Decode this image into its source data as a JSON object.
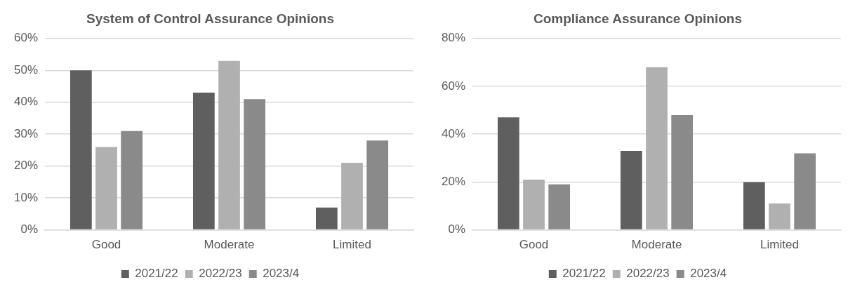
{
  "chart_data": [
    {
      "type": "bar",
      "title": "System of Control Assurance Opinions",
      "categories": [
        "Good",
        "Moderate",
        "Limited"
      ],
      "series": [
        {
          "name": "2021/22",
          "color": "#5f5f5f",
          "values": [
            50,
            43,
            7
          ]
        },
        {
          "name": "2022/23",
          "color": "#b0b0b0",
          "values": [
            26,
            53,
            21
          ]
        },
        {
          "name": "2023/4",
          "color": "#8a8a8a",
          "values": [
            31,
            41,
            28
          ]
        }
      ],
      "ylim": [
        0,
        60
      ],
      "yticks": [
        {
          "value": 0,
          "label": "0%"
        },
        {
          "value": 10,
          "label": "10%"
        },
        {
          "value": 20,
          "label": "20%"
        },
        {
          "value": 30,
          "label": "30%"
        },
        {
          "value": 40,
          "label": "40%"
        },
        {
          "value": 50,
          "label": "50%"
        },
        {
          "value": 60,
          "label": "60%"
        }
      ],
      "grid": "y",
      "legend": "bottom"
    },
    {
      "type": "bar",
      "title": "Compliance Assurance Opinions",
      "categories": [
        "Good",
        "Moderate",
        "Limited"
      ],
      "series": [
        {
          "name": "2021/22",
          "color": "#5f5f5f",
          "values": [
            47,
            33,
            20
          ]
        },
        {
          "name": "2022/23",
          "color": "#b0b0b0",
          "values": [
            21,
            68,
            11
          ]
        },
        {
          "name": "2023/4",
          "color": "#8a8a8a",
          "values": [
            19,
            48,
            32
          ]
        }
      ],
      "ylim": [
        0,
        80
      ],
      "yticks": [
        {
          "value": 0,
          "label": "0%"
        },
        {
          "value": 20,
          "label": "20%"
        },
        {
          "value": 40,
          "label": "40%"
        },
        {
          "value": 60,
          "label": "60%"
        },
        {
          "value": 80,
          "label": "80%"
        }
      ],
      "grid": "y",
      "legend": "bottom"
    }
  ]
}
